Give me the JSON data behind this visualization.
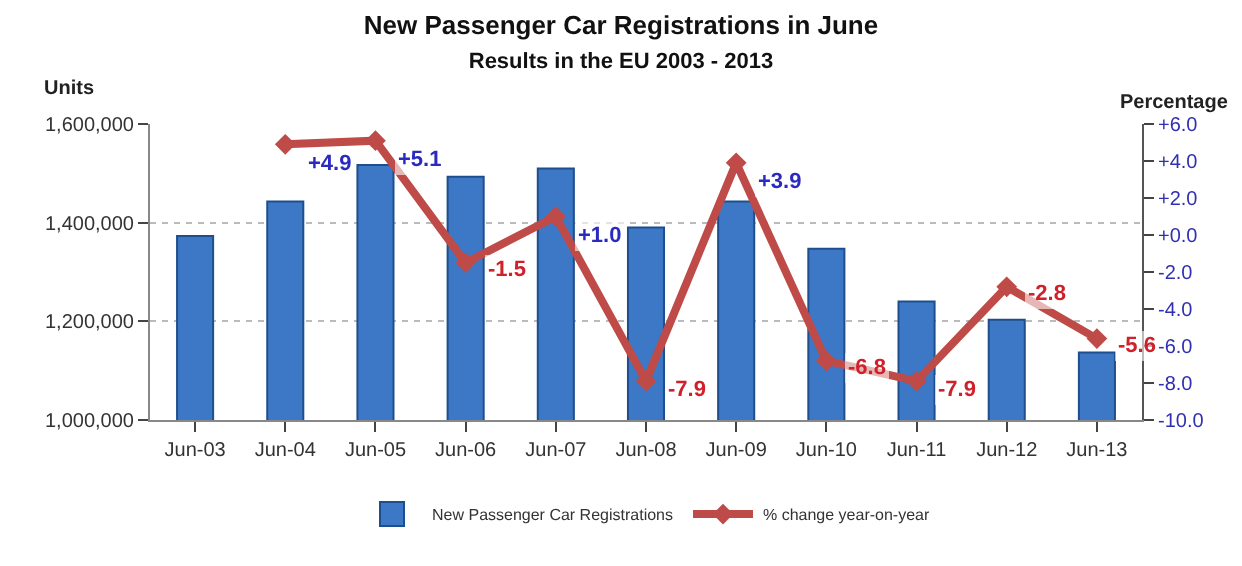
{
  "chart_data": {
    "type": "bar",
    "title": "New Passenger Car Registrations in June",
    "subtitle": "Results in the EU 2003 - 2013",
    "ylabel": "Units",
    "y2label": "Percentage",
    "categories": [
      "Jun-03",
      "Jun-04",
      "Jun-05",
      "Jun-06",
      "Jun-07",
      "Jun-08",
      "Jun-09",
      "Jun-10",
      "Jun-11",
      "Jun-12",
      "Jun-13"
    ],
    "series": [
      {
        "name": "New Passenger Car Registrations",
        "color": "#3d78c6",
        "values": [
          1373000,
          1443000,
          1517000,
          1493000,
          1510000,
          1390000,
          1443000,
          1347000,
          1240000,
          1203000,
          1137000
        ]
      },
      {
        "name": "% change year-on-year",
        "type": "line",
        "axis": "y2",
        "color": "#be4b48",
        "marker": "diamond",
        "values": [
          null,
          4.9,
          5.1,
          -1.5,
          1.0,
          -7.9,
          3.9,
          -6.8,
          -7.9,
          -2.8,
          -5.6
        ],
        "value_labels": [
          null,
          "+4.9",
          "+5.1",
          "-1.5",
          "+1.0",
          "-7.9",
          "+3.9",
          "-6.8",
          "-7.9",
          "-2.8",
          "-5.6"
        ]
      }
    ],
    "ylim": [
      1000000,
      1600000
    ],
    "yticks": [
      {
        "value": 1000000,
        "label": "1,000,000"
      },
      {
        "value": 1200000,
        "label": "1,200,000"
      },
      {
        "value": 1400000,
        "label": "1,400,000"
      },
      {
        "value": 1600000,
        "label": "1,600,000"
      }
    ],
    "y2lim": [
      -10,
      6
    ],
    "y2ticks": [
      {
        "value": 6,
        "label": "+6.0"
      },
      {
        "value": 4,
        "label": "+4.0"
      },
      {
        "value": 2,
        "label": "+2.0"
      },
      {
        "value": 0,
        "label": "+0.0"
      },
      {
        "value": -2,
        "label": "-2.0"
      },
      {
        "value": -4,
        "label": "-4.0"
      },
      {
        "value": -6,
        "label": "-6.0"
      },
      {
        "value": -8,
        "label": "-8.0"
      },
      {
        "value": -10,
        "label": "-10.0"
      }
    ],
    "grid": "y",
    "legend": "bottom"
  }
}
